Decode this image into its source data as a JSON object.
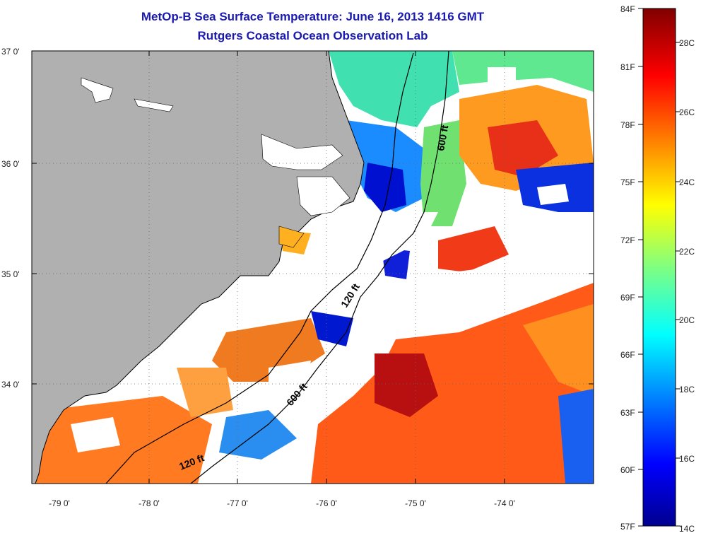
{
  "title": {
    "line1": "MetOp-B Sea Surface Temperature:  June 16, 2013 1416 GMT",
    "line2": "Rutgers Coastal Ocean Observation Lab"
  },
  "axes": {
    "lat_labels": [
      "37 0'",
      "36 0'",
      "35 0'",
      "34 0'"
    ],
    "lon_labels": [
      "-79 0'",
      "-78 0'",
      "-77 0'",
      "-76 0'",
      "-75 0'",
      "-74 0'"
    ]
  },
  "contours": {
    "labels": [
      "600 ft",
      "120 ft",
      "600 ft",
      "120 ft"
    ]
  },
  "colorbar": {
    "f_labels": [
      "84F",
      "81F",
      "78F",
      "75F",
      "72F",
      "69F",
      "66F",
      "63F",
      "60F",
      "57F"
    ],
    "c_labels": [
      "28C",
      "26C",
      "24C",
      "22C",
      "20C",
      "18C",
      "16C",
      "14C"
    ]
  },
  "colors": {
    "land": "#b0b0b0",
    "title": "#1a1ab0",
    "cold": "#00008f",
    "warm": "#800000"
  }
}
